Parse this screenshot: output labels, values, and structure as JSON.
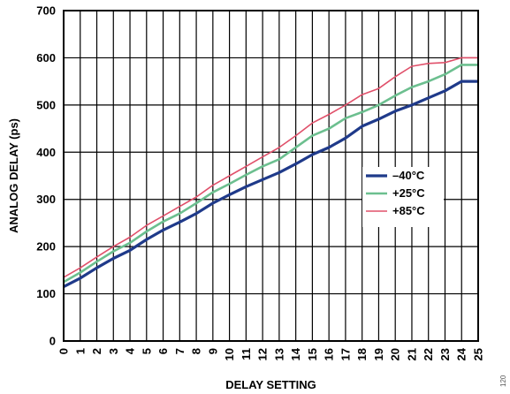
{
  "chart_data": {
    "type": "line",
    "title": "",
    "xlabel": "DELAY SETTING",
    "ylabel": "ANALOG DELAY (ps)",
    "x": [
      0,
      1,
      2,
      3,
      4,
      5,
      6,
      7,
      8,
      9,
      10,
      11,
      12,
      13,
      14,
      15,
      16,
      17,
      18,
      19,
      20,
      21,
      22,
      23,
      24,
      25
    ],
    "xlim": [
      0,
      25
    ],
    "ylim": [
      0,
      700
    ],
    "yticks": [
      0,
      100,
      200,
      300,
      400,
      500,
      600,
      700
    ],
    "grid": true,
    "legend_position": "center-right",
    "series": [
      {
        "name": "–40°C",
        "color": "#1f3a8a",
        "stroke": "thick",
        "values": [
          115,
          133,
          155,
          175,
          192,
          215,
          235,
          252,
          270,
          292,
          310,
          327,
          342,
          357,
          375,
          395,
          410,
          430,
          455,
          470,
          487,
          500,
          515,
          530,
          550,
          550
        ]
      },
      {
        "name": "+25°C",
        "color": "#6cbf8f",
        "stroke": "medium",
        "values": [
          125,
          145,
          168,
          190,
          208,
          232,
          253,
          270,
          292,
          315,
          333,
          352,
          370,
          385,
          410,
          435,
          450,
          472,
          485,
          500,
          520,
          538,
          550,
          565,
          585,
          585
        ]
      },
      {
        "name": "+85°C",
        "color": "#e0506a",
        "stroke": "thin",
        "values": [
          135,
          155,
          178,
          200,
          220,
          245,
          265,
          285,
          305,
          330,
          350,
          370,
          390,
          410,
          435,
          462,
          480,
          500,
          522,
          535,
          560,
          582,
          588,
          590,
          600,
          600
        ]
      }
    ]
  },
  "figure_id": "120"
}
